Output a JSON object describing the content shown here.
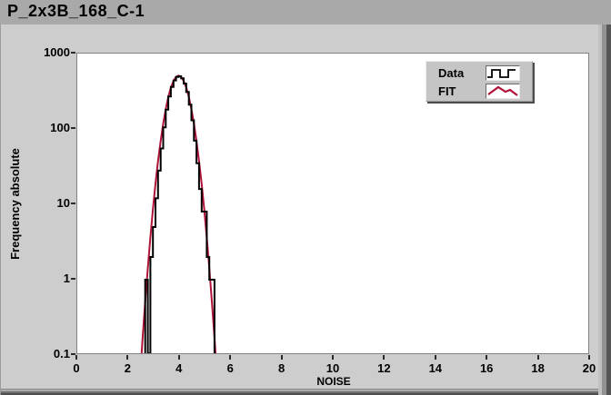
{
  "window": {
    "title": "P_2x3B_168_C-1"
  },
  "legend": {
    "items": [
      {
        "label": "Data",
        "icon": "square-wave-line",
        "color": "#000000"
      },
      {
        "label": "FIT",
        "icon": "zigzag-line",
        "color": "#b01238"
      }
    ]
  },
  "colors": {
    "data_series": "#000000",
    "fit_series": "#b01238",
    "panel_bg": "#cdcdcd",
    "titlebar_bg": "#a9a9a9",
    "plot_bg": "#ffffff"
  },
  "chart_data": {
    "type": "line",
    "title": "P_2x3B_168_C-1",
    "xlabel": "NOISE",
    "ylabel": "Frequency absolute",
    "x_scale": "linear",
    "y_scale": "log",
    "xlim": [
      0,
      20
    ],
    "ylim": [
      0.1,
      1000
    ],
    "x_tick_values": [
      0,
      2,
      4,
      6,
      8,
      10,
      12,
      14,
      16,
      18,
      20
    ],
    "y_tick_labels": [
      "1000",
      "100",
      "10",
      "1",
      "0.1"
    ],
    "y_tick_values": [
      1000,
      100,
      10,
      1,
      0.1
    ],
    "grid": false,
    "legend_position": "top-right",
    "series": [
      {
        "name": "Data",
        "style": "histogram-step",
        "color": "#000000",
        "bin_start": 2.65,
        "bin_width": 0.1,
        "counts": [
          1,
          0.105,
          2,
          5,
          12,
          28,
          55,
          105,
          180,
          270,
          360,
          440,
          490,
          500,
          470,
          400,
          310,
          210,
          130,
          70,
          35,
          16,
          8,
          8,
          2,
          1,
          1
        ]
      },
      {
        "name": "FIT",
        "style": "gaussian-curve",
        "color": "#b01238",
        "amplitude": 510,
        "mean": 3.95,
        "sigma": 0.35,
        "x_range": [
          2.45,
          5.45
        ],
        "peak_approx": 500
      }
    ]
  }
}
